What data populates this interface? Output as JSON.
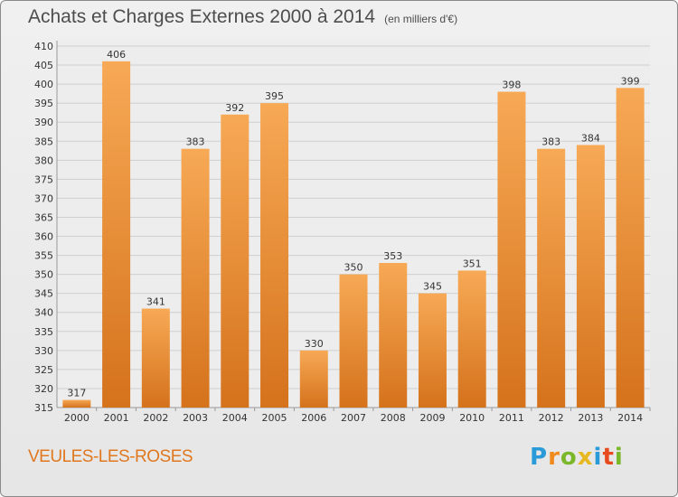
{
  "header": {
    "title": "Achats et Charges Externes 2000 à 2014",
    "subtitle": "(en milliers d'€)"
  },
  "footer": {
    "town": "VEULES-LES-ROSES",
    "logo": {
      "letters": [
        "P",
        "r",
        "o",
        "x",
        "i",
        "t",
        "i"
      ],
      "colors": [
        "#2a9ad8",
        "#f08a1c",
        "#7ab82a",
        "#e8b820",
        "#2a9ad8",
        "#e84a20",
        "#7ab82a"
      ]
    }
  },
  "colors": {
    "bar_light": "#f7a955",
    "bar_dark": "#d5721c"
  },
  "chart_data": {
    "type": "bar",
    "title": "Achats et Charges Externes 2000 à 2014",
    "subtitle": "(en milliers d'€)",
    "xlabel": "",
    "ylabel": "",
    "categories": [
      "2000",
      "2001",
      "2002",
      "2003",
      "2004",
      "2005",
      "2006",
      "2007",
      "2008",
      "2009",
      "2010",
      "2011",
      "2012",
      "2013",
      "2014"
    ],
    "values": [
      317,
      406,
      341,
      383,
      392,
      395,
      330,
      350,
      353,
      345,
      351,
      398,
      383,
      384,
      399
    ],
    "ylim": [
      315,
      410
    ],
    "yticks": [
      315,
      320,
      325,
      330,
      335,
      340,
      345,
      350,
      355,
      360,
      365,
      370,
      375,
      380,
      385,
      390,
      395,
      400,
      405,
      410
    ],
    "grid": true
  }
}
